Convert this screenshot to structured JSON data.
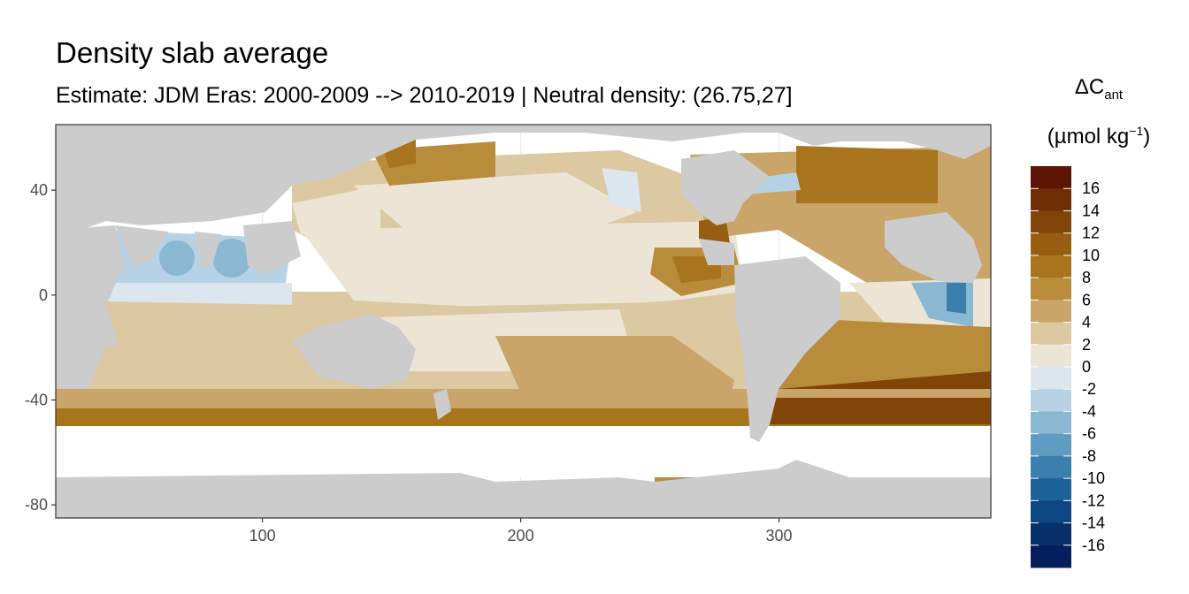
{
  "title": "Density slab average",
  "subtitle": "Estimate: JDM Eras: 2000-2009 --> 2010-2019 | Neutral density: (26.75,27]",
  "legend": {
    "title_symbol": "ΔC",
    "title_subscript": "ant",
    "unit_prefix": "(µmol kg",
    "unit_superscript": "−1",
    "unit_suffix": ")",
    "breaks": [
      "16",
      "14",
      "12",
      "10",
      "8",
      "6",
      "4",
      "2",
      "0",
      "-2",
      "-4",
      "-6",
      "-8",
      "-10",
      "-12",
      "-14",
      "-16"
    ],
    "colors": [
      "#5c1405",
      "#6f2e05",
      "#81450a",
      "#965e10",
      "#a8741e",
      "#b98c3b",
      "#c9a56a",
      "#ddc9a1",
      "#ece5d6",
      "#dbe6ee",
      "#b6d2e4",
      "#8ab8d3",
      "#5f9cc1",
      "#3b7fac",
      "#1c6197",
      "#0d4783",
      "#08306b",
      "#061f5c"
    ]
  },
  "x_axis": {
    "ticks": [
      "100",
      "200",
      "300"
    ],
    "tick_values": [
      100,
      200,
      300
    ],
    "range": [
      20,
      382
    ]
  },
  "y_axis": {
    "ticks": [
      "40",
      "0",
      "-40",
      "-80"
    ],
    "tick_values": [
      40,
      0,
      -40,
      -80
    ],
    "range": [
      -85,
      65
    ]
  },
  "colors": {
    "land": "#cccccc",
    "nodata": "#ffffff",
    "panel_border": "#333333",
    "grid": "#ebebeb"
  }
}
